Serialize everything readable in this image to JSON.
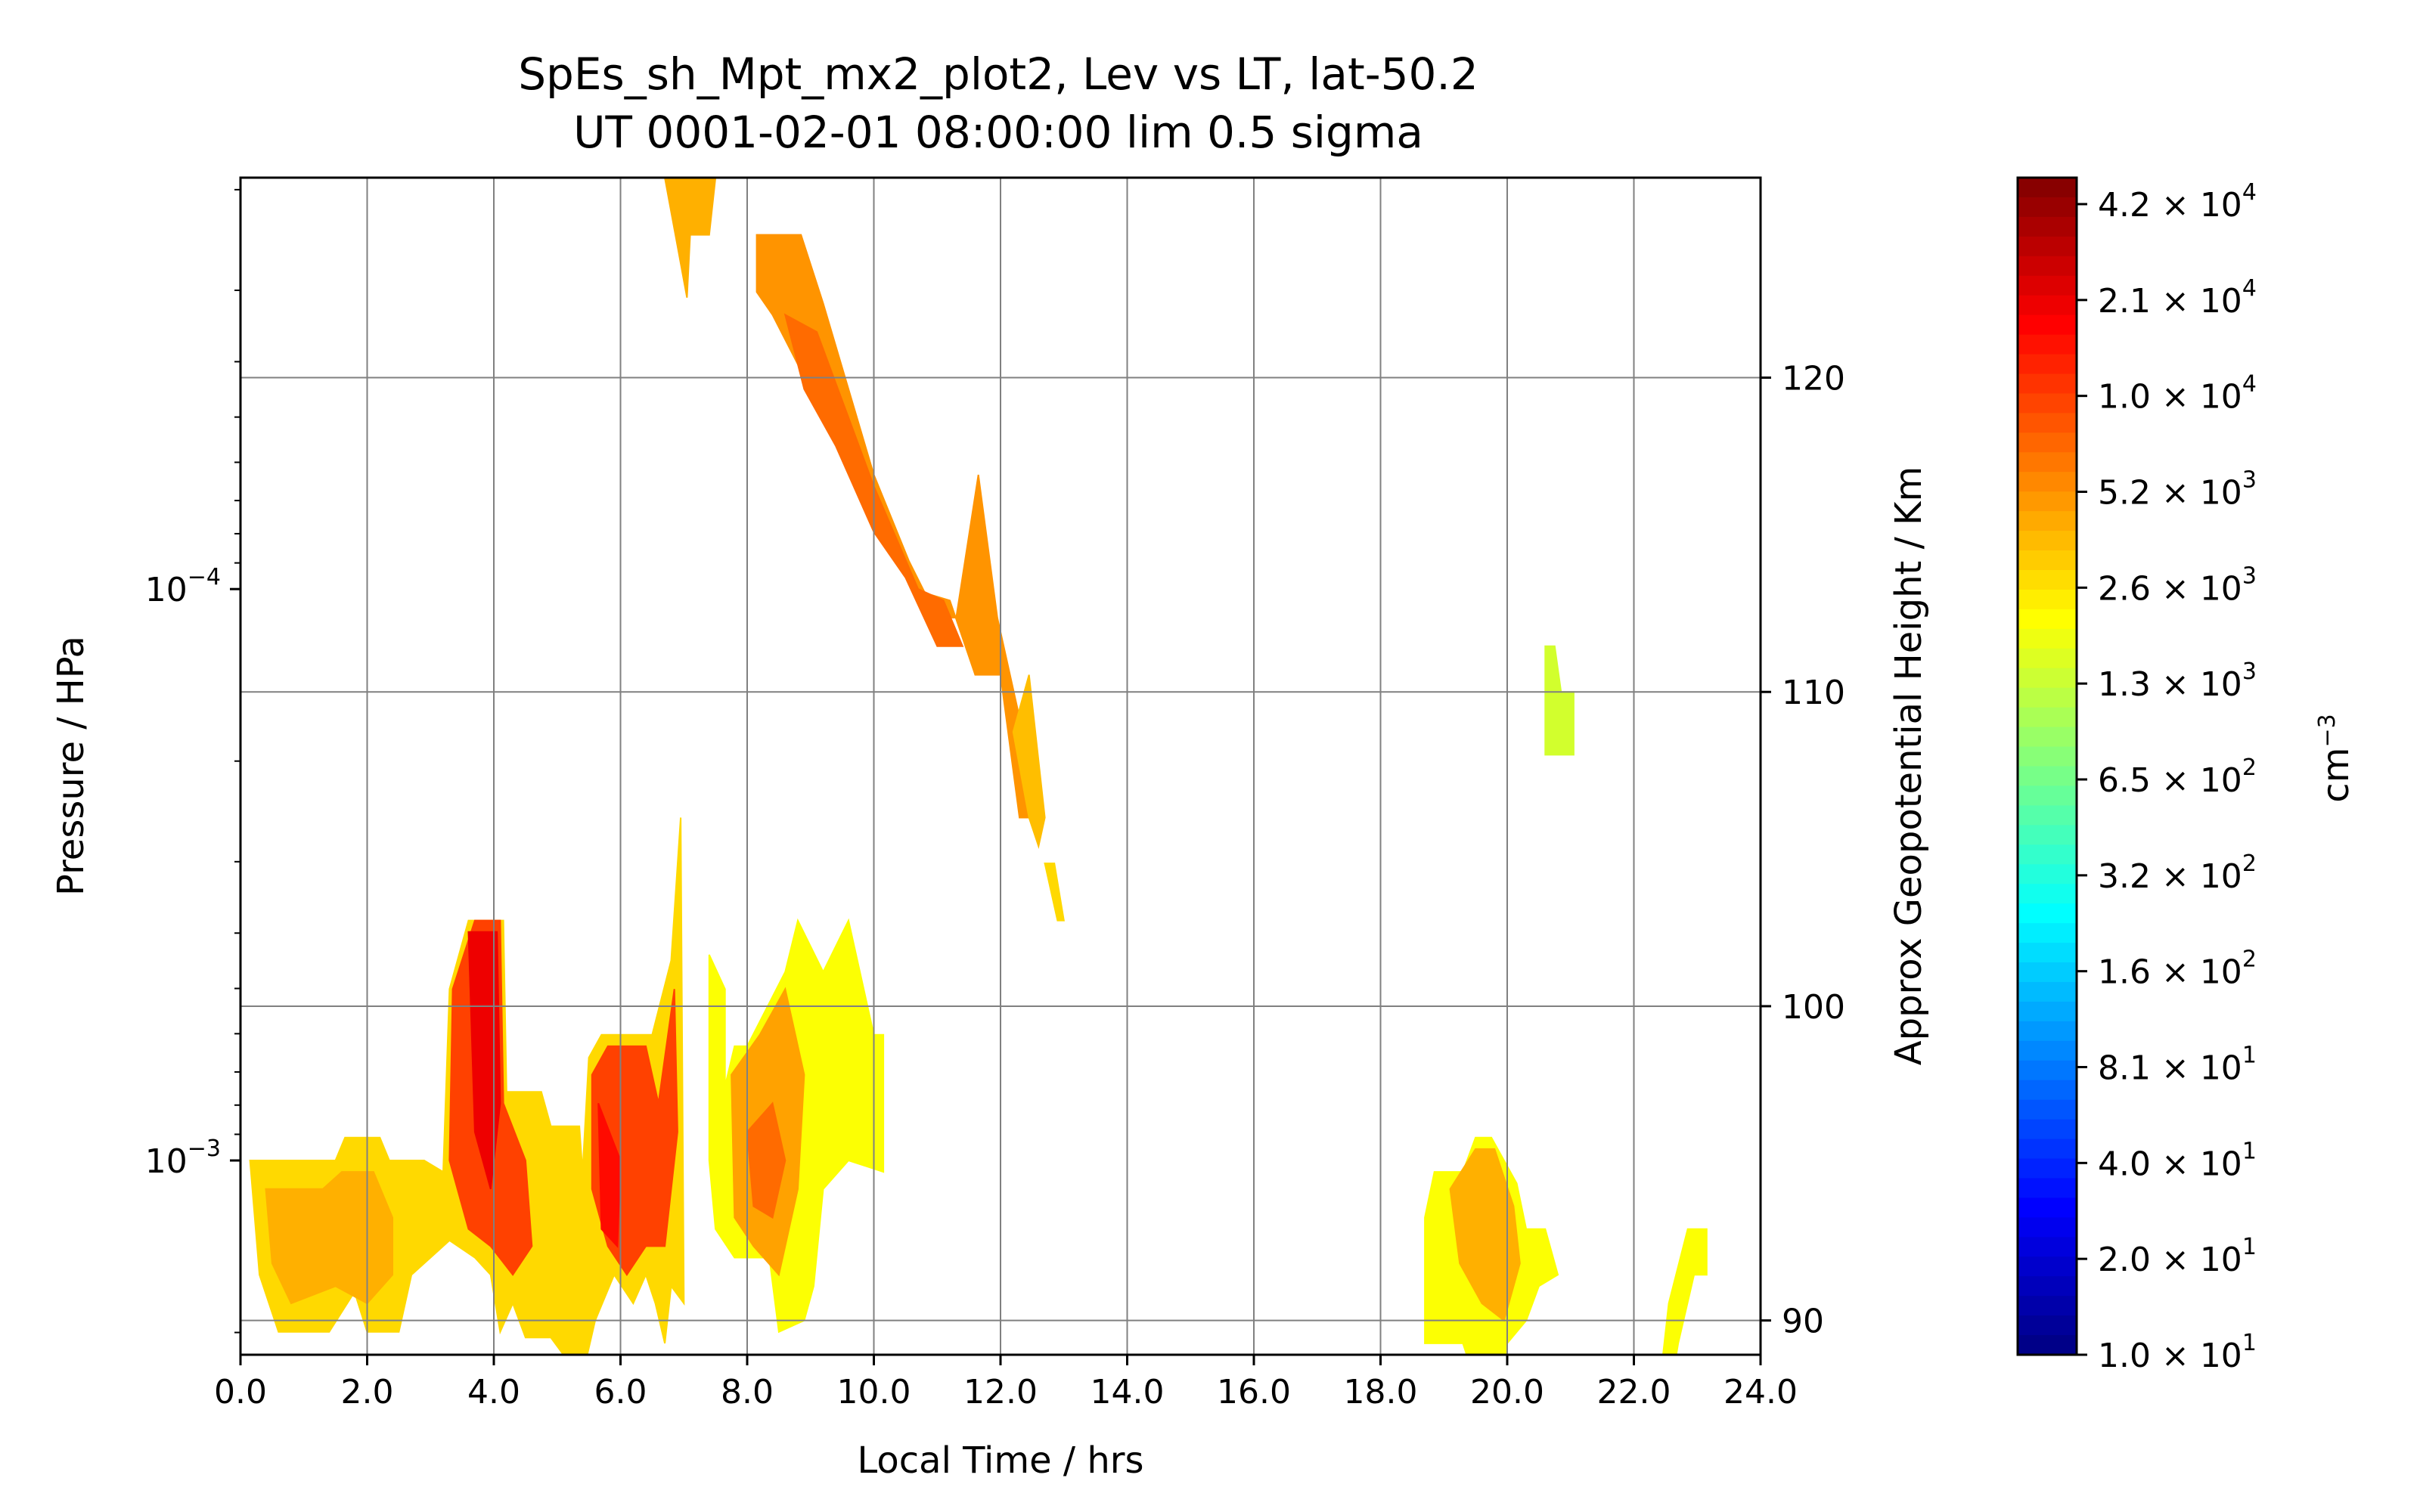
{
  "chart_data": {
    "type": "heatmap",
    "title": "SpEs_sh_Mpt_mx2_plot2, Lev vs LT, lat-50.2",
    "subtitle": "UT 0001-02-01 08:00:00 lim 0.5 sigma",
    "xlabel": "Local Time / hrs",
    "ylabel": "Pressure / HPa",
    "y2label": "Approx Geopotential Height / Km",
    "colorbar_label": "cm",
    "colorbar_label_exp": "−3",
    "xlim": [
      0,
      24
    ],
    "ylim_exponent": [
      -2.66,
      -4.72
    ],
    "y_log": true,
    "x_ticks": [
      "0.0",
      "2.0",
      "4.0",
      "6.0",
      "8.0",
      "10.0",
      "12.0",
      "14.0",
      "16.0",
      "18.0",
      "20.0",
      "22.0",
      "24.0"
    ],
    "y_ticks": [
      {
        "mant": "10",
        "exp": "−4",
        "value": -4.0
      },
      {
        "mant": "10",
        "exp": "−3",
        "value": -3.0
      }
    ],
    "y2_ticks": [
      {
        "label": "120",
        "value": -4.37
      },
      {
        "label": "110",
        "value": -3.82
      },
      {
        "label": "100",
        "value": -3.27
      },
      {
        "label": "90",
        "value": -2.72
      }
    ],
    "grid": true,
    "colorbar_ticks": [
      {
        "mant": "4.2",
        "exp": "4"
      },
      {
        "mant": "2.1",
        "exp": "4"
      },
      {
        "mant": "1.0",
        "exp": "4"
      },
      {
        "mant": "5.2",
        "exp": "3"
      },
      {
        "mant": "2.6",
        "exp": "3"
      },
      {
        "mant": "1.3",
        "exp": "3"
      },
      {
        "mant": "6.5",
        "exp": "2"
      },
      {
        "mant": "3.2",
        "exp": "2"
      },
      {
        "mant": "1.6",
        "exp": "2"
      },
      {
        "mant": "8.1",
        "exp": "1"
      },
      {
        "mant": "4.0",
        "exp": "1"
      },
      {
        "mant": "2.0",
        "exp": "1"
      },
      {
        "mant": "1.0",
        "exp": "1"
      }
    ],
    "colorbar_range_log10": [
      1.0,
      4.7
    ],
    "regions": [
      {
        "points": [
          [
            6.7,
            -4.72
          ],
          [
            7.5,
            -4.72
          ],
          [
            7.4,
            -4.62
          ],
          [
            7.1,
            -4.62
          ],
          [
            7.05,
            -4.51
          ],
          [
            6.9,
            -4.6
          ]
        ],
        "value": 3.6
      },
      {
        "points": [
          [
            8.15,
            -4.62
          ],
          [
            8.85,
            -4.62
          ],
          [
            9.2,
            -4.5
          ],
          [
            9.6,
            -4.35
          ],
          [
            10.0,
            -4.2
          ],
          [
            10.55,
            -4.05
          ],
          [
            11.0,
            -3.95
          ],
          [
            11.3,
            -3.95
          ],
          [
            11.65,
            -4.2
          ],
          [
            11.95,
            -3.95
          ],
          [
            12.35,
            -3.75
          ],
          [
            12.5,
            -3.6
          ],
          [
            12.3,
            -3.6
          ],
          [
            12.0,
            -3.85
          ],
          [
            11.6,
            -3.85
          ],
          [
            11.2,
            -3.98
          ],
          [
            10.6,
            -4.0
          ],
          [
            10.25,
            -4.1
          ],
          [
            9.7,
            -4.25
          ],
          [
            9.3,
            -4.28
          ],
          [
            9.0,
            -4.35
          ],
          [
            8.4,
            -4.48
          ],
          [
            8.15,
            -4.52
          ]
        ],
        "value": 3.7
      },
      {
        "points": [
          [
            8.6,
            -4.48
          ],
          [
            9.1,
            -4.45
          ],
          [
            9.6,
            -4.3
          ],
          [
            10.0,
            -4.18
          ],
          [
            10.7,
            -4.0
          ],
          [
            11.1,
            -3.98
          ],
          [
            11.4,
            -3.9
          ],
          [
            11.0,
            -3.9
          ],
          [
            10.5,
            -4.02
          ],
          [
            10.0,
            -4.1
          ],
          [
            9.4,
            -4.25
          ],
          [
            8.9,
            -4.35
          ]
        ],
        "value": 3.85
      },
      {
        "points": [
          [
            12.2,
            -3.75
          ],
          [
            12.45,
            -3.85
          ],
          [
            12.7,
            -3.6
          ],
          [
            12.6,
            -3.55
          ],
          [
            12.45,
            -3.6
          ]
        ],
        "value": 3.55
      },
      {
        "points": [
          [
            12.7,
            -3.52
          ],
          [
            12.85,
            -3.52
          ],
          [
            13.0,
            -3.42
          ],
          [
            12.9,
            -3.42
          ]
        ],
        "value": 3.45
      },
      {
        "points": [
          [
            20.6,
            -3.9
          ],
          [
            20.75,
            -3.9
          ],
          [
            20.85,
            -3.82
          ],
          [
            21.05,
            -3.82
          ],
          [
            21.05,
            -3.71
          ],
          [
            20.6,
            -3.71
          ]
        ],
        "value": 3.15
      },
      {
        "points": [
          [
            0.15,
            -3.0
          ],
          [
            1.5,
            -3.0
          ],
          [
            1.65,
            -3.04
          ],
          [
            2.2,
            -3.04
          ],
          [
            2.35,
            -3.0
          ],
          [
            2.9,
            -3.0
          ],
          [
            3.2,
            -2.98
          ],
          [
            3.3,
            -3.3
          ],
          [
            3.6,
            -3.42
          ],
          [
            4.15,
            -3.42
          ],
          [
            4.2,
            -3.12
          ],
          [
            4.75,
            -3.12
          ],
          [
            4.9,
            -3.06
          ],
          [
            5.35,
            -3.06
          ],
          [
            5.4,
            -2.98
          ],
          [
            5.5,
            -3.18
          ],
          [
            5.7,
            -3.22
          ],
          [
            6.5,
            -3.22
          ],
          [
            6.8,
            -3.35
          ],
          [
            6.95,
            -3.6
          ],
          [
            7.0,
            -2.75
          ],
          [
            6.8,
            -2.78
          ],
          [
            6.7,
            -2.68
          ],
          [
            6.55,
            -2.75
          ],
          [
            6.4,
            -2.8
          ],
          [
            6.2,
            -2.75
          ],
          [
            5.9,
            -2.8
          ],
          [
            5.6,
            -2.72
          ],
          [
            5.35,
            -2.6
          ],
          [
            5.2,
            -2.58
          ],
          [
            5.1,
            -2.66
          ],
          [
            4.9,
            -2.69
          ],
          [
            4.5,
            -2.69
          ],
          [
            4.3,
            -2.75
          ],
          [
            4.1,
            -2.7
          ],
          [
            3.95,
            -2.8
          ],
          [
            3.7,
            -2.83
          ],
          [
            3.3,
            -2.86
          ],
          [
            3.0,
            -2.83
          ],
          [
            2.7,
            -2.8
          ],
          [
            2.5,
            -2.7
          ],
          [
            2.3,
            -2.7
          ],
          [
            2.0,
            -2.7
          ],
          [
            1.8,
            -2.77
          ],
          [
            1.4,
            -2.7
          ],
          [
            0.6,
            -2.7
          ],
          [
            0.3,
            -2.8
          ]
        ],
        "value": 3.45
      },
      {
        "points": [
          [
            0.4,
            -2.95
          ],
          [
            1.3,
            -2.95
          ],
          [
            1.6,
            -2.98
          ],
          [
            2.1,
            -2.98
          ],
          [
            2.4,
            -2.9
          ],
          [
            2.4,
            -2.8
          ],
          [
            2.0,
            -2.75
          ],
          [
            1.5,
            -2.78
          ],
          [
            0.8,
            -2.75
          ],
          [
            0.5,
            -2.82
          ]
        ],
        "value": 3.6
      },
      {
        "points": [
          [
            3.35,
            -3.3
          ],
          [
            3.7,
            -3.42
          ],
          [
            4.1,
            -3.42
          ],
          [
            4.15,
            -3.1
          ],
          [
            4.5,
            -3.0
          ],
          [
            4.6,
            -2.85
          ],
          [
            4.3,
            -2.8
          ],
          [
            3.95,
            -2.85
          ],
          [
            3.6,
            -2.88
          ],
          [
            3.3,
            -3.0
          ]
        ],
        "value": 4.0
      },
      {
        "points": [
          [
            3.6,
            -3.4
          ],
          [
            4.05,
            -3.4
          ],
          [
            4.1,
            -3.1
          ],
          [
            3.95,
            -2.95
          ],
          [
            3.7,
            -3.05
          ]
        ],
        "value": 4.3
      },
      {
        "points": [
          [
            5.55,
            -3.15
          ],
          [
            5.8,
            -3.2
          ],
          [
            6.4,
            -3.2
          ],
          [
            6.6,
            -3.1
          ],
          [
            6.85,
            -3.3
          ],
          [
            6.9,
            -3.05
          ],
          [
            6.7,
            -2.85
          ],
          [
            6.4,
            -2.85
          ],
          [
            6.1,
            -2.8
          ],
          [
            5.8,
            -2.85
          ],
          [
            5.55,
            -2.95
          ]
        ],
        "value": 4.0
      },
      {
        "points": [
          [
            5.65,
            -3.1
          ],
          [
            6.0,
            -3.0
          ],
          [
            5.95,
            -2.85
          ],
          [
            5.7,
            -2.88
          ]
        ],
        "value": 4.2
      },
      {
        "points": [
          [
            7.4,
            -3.36
          ],
          [
            7.65,
            -3.3
          ],
          [
            7.65,
            -3.13
          ],
          [
            7.8,
            -3.2
          ],
          [
            8.0,
            -3.2
          ],
          [
            8.6,
            -3.33
          ],
          [
            8.8,
            -3.42
          ],
          [
            9.2,
            -3.33
          ],
          [
            9.6,
            -3.42
          ],
          [
            10.0,
            -3.22
          ],
          [
            10.15,
            -3.22
          ],
          [
            10.15,
            -2.98
          ],
          [
            9.6,
            -3.0
          ],
          [
            9.2,
            -2.95
          ],
          [
            9.05,
            -2.78
          ],
          [
            8.9,
            -2.72
          ],
          [
            8.5,
            -2.7
          ],
          [
            8.35,
            -2.83
          ],
          [
            7.8,
            -2.83
          ],
          [
            7.5,
            -2.88
          ],
          [
            7.4,
            -3.0
          ]
        ],
        "value": 3.3
      },
      {
        "points": [
          [
            7.75,
            -3.15
          ],
          [
            8.2,
            -3.22
          ],
          [
            8.6,
            -3.3
          ],
          [
            8.9,
            -3.15
          ],
          [
            8.8,
            -2.95
          ],
          [
            8.5,
            -2.8
          ],
          [
            8.1,
            -2.85
          ],
          [
            7.8,
            -2.9
          ]
        ],
        "value": 3.65
      },
      {
        "points": [
          [
            8.0,
            -3.05
          ],
          [
            8.4,
            -3.1
          ],
          [
            8.6,
            -3.0
          ],
          [
            8.4,
            -2.9
          ],
          [
            8.1,
            -2.92
          ]
        ],
        "value": 3.85
      },
      {
        "points": [
          [
            18.7,
            -2.9
          ],
          [
            18.85,
            -2.98
          ],
          [
            19.3,
            -2.98
          ],
          [
            19.5,
            -3.04
          ],
          [
            19.75,
            -3.04
          ],
          [
            20.15,
            -2.96
          ],
          [
            20.3,
            -2.88
          ],
          [
            20.6,
            -2.88
          ],
          [
            20.8,
            -2.8
          ],
          [
            20.5,
            -2.78
          ],
          [
            20.3,
            -2.72
          ],
          [
            20.0,
            -2.68
          ],
          [
            19.9,
            -2.58
          ],
          [
            19.6,
            -2.58
          ],
          [
            19.3,
            -2.68
          ],
          [
            18.7,
            -2.68
          ]
        ],
        "value": 3.3
      },
      {
        "points": [
          [
            19.1,
            -2.95
          ],
          [
            19.5,
            -3.02
          ],
          [
            19.8,
            -3.02
          ],
          [
            20.1,
            -2.92
          ],
          [
            20.2,
            -2.82
          ],
          [
            19.95,
            -2.72
          ],
          [
            19.6,
            -2.75
          ],
          [
            19.25,
            -2.82
          ]
        ],
        "value": 3.6
      },
      {
        "points": [
          [
            22.45,
            -2.65
          ],
          [
            22.55,
            -2.75
          ],
          [
            22.85,
            -2.88
          ],
          [
            23.15,
            -2.88
          ],
          [
            23.15,
            -2.8
          ],
          [
            22.95,
            -2.8
          ],
          [
            22.7,
            -2.68
          ],
          [
            22.55,
            -2.58
          ],
          [
            22.45,
            -2.58
          ]
        ],
        "value": 3.3
      }
    ]
  }
}
